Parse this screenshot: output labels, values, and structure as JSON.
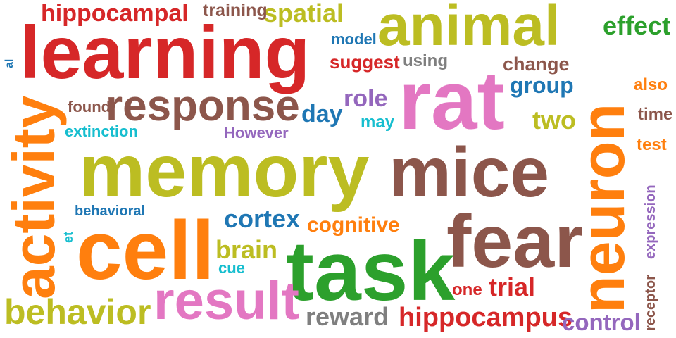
{
  "colors": {
    "red": "#d62728",
    "brown": "#8c564b",
    "olive": "#bcbd22",
    "orange": "#ff7f0e",
    "green": "#2ca02c",
    "pink": "#e377c2",
    "blue": "#1f77b4",
    "purple": "#9467bd",
    "cyan": "#17becf",
    "gray": "#7f7f7f"
  },
  "words": [
    {
      "text": "memory",
      "color": "olive"
    },
    {
      "text": "mice",
      "color": "brown"
    },
    {
      "text": "learning",
      "color": "red"
    },
    {
      "text": "task",
      "color": "green"
    },
    {
      "text": "rat",
      "color": "pink"
    },
    {
      "text": "neuron",
      "color": "orange"
    },
    {
      "text": "cell",
      "color": "orange"
    },
    {
      "text": "fear",
      "color": "brown"
    },
    {
      "text": "activity",
      "color": "orange"
    },
    {
      "text": "animal",
      "color": "olive"
    },
    {
      "text": "response",
      "color": "brown"
    },
    {
      "text": "result",
      "color": "pink"
    },
    {
      "text": "behavior",
      "color": "olive"
    },
    {
      "text": "hippocampal",
      "color": "red"
    },
    {
      "text": "spatial",
      "color": "olive"
    },
    {
      "text": "hippocampus",
      "color": "red"
    },
    {
      "text": "cortex",
      "color": "blue"
    },
    {
      "text": "cognitive",
      "color": "orange"
    },
    {
      "text": "brain",
      "color": "olive"
    },
    {
      "text": "reward",
      "color": "gray"
    },
    {
      "text": "trial",
      "color": "red"
    },
    {
      "text": "two",
      "color": "olive"
    },
    {
      "text": "group",
      "color": "blue"
    },
    {
      "text": "effect",
      "color": "green"
    },
    {
      "text": "day",
      "color": "blue"
    },
    {
      "text": "role",
      "color": "purple"
    },
    {
      "text": "change",
      "color": "brown"
    },
    {
      "text": "control",
      "color": "purple"
    },
    {
      "text": "suggest",
      "color": "red"
    },
    {
      "text": "training",
      "color": "brown"
    },
    {
      "text": "extinction",
      "color": "cyan"
    },
    {
      "text": "found",
      "color": "brown"
    },
    {
      "text": "using",
      "color": "gray"
    },
    {
      "text": "model",
      "color": "blue"
    },
    {
      "text": "may",
      "color": "cyan"
    },
    {
      "text": "However",
      "color": "purple"
    },
    {
      "text": "also",
      "color": "orange"
    },
    {
      "text": "time",
      "color": "brown"
    },
    {
      "text": "test",
      "color": "orange"
    },
    {
      "text": "behavioral",
      "color": "blue"
    },
    {
      "text": "cue",
      "color": "cyan"
    },
    {
      "text": "one",
      "color": "red"
    },
    {
      "text": "expression",
      "color": "purple"
    },
    {
      "text": "receptor",
      "color": "brown"
    },
    {
      "text": "al",
      "color": "blue"
    },
    {
      "text": "et",
      "color": "cyan"
    }
  ]
}
